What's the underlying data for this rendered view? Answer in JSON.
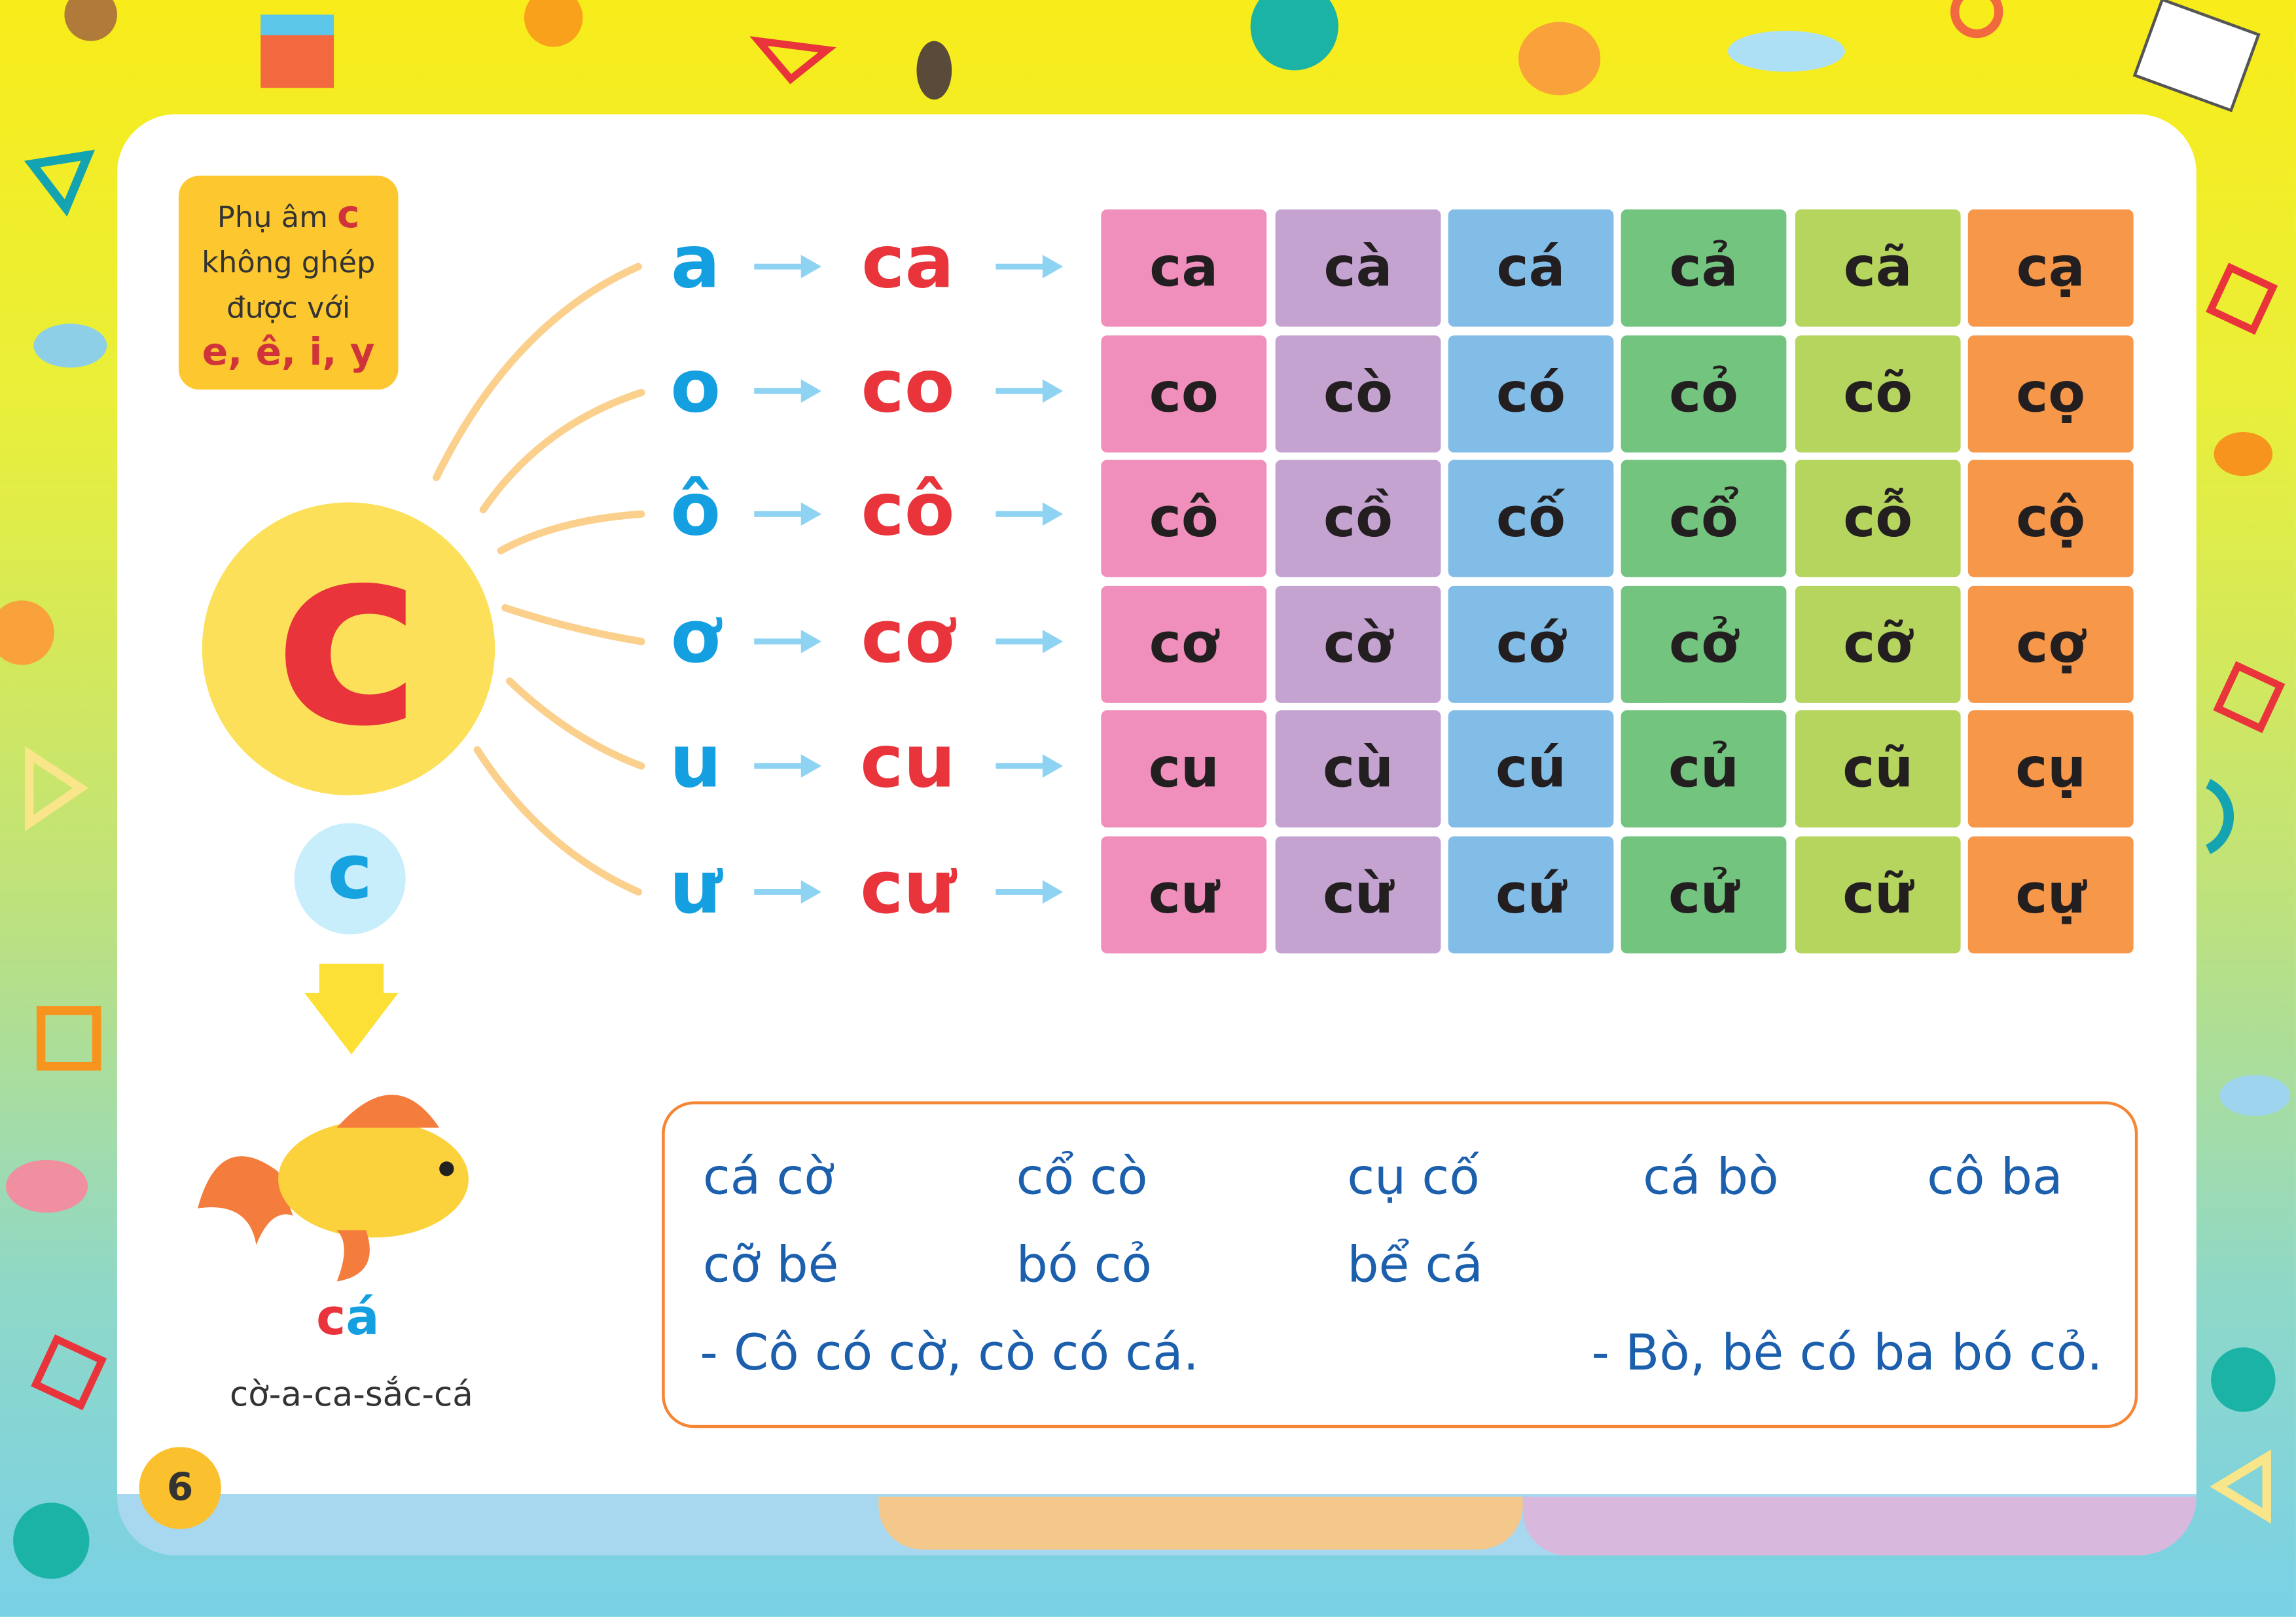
{
  "note": {
    "line1": "Phụ âm ",
    "consonant": "c",
    "line2": "không ghép",
    "line3": "được với",
    "excluded": "e, ê, i, y"
  },
  "big_letter": "c",
  "small_letter": "c",
  "fish_word": {
    "c": "c",
    "rest": "á"
  },
  "spelling": "cờ-a-ca-sắc-cá",
  "rows": [
    {
      "vowel": "a",
      "syllable": "ca",
      "tones": [
        "ca",
        "cà",
        "cá",
        "cả",
        "cã",
        "cạ"
      ]
    },
    {
      "vowel": "o",
      "syllable": "co",
      "tones": [
        "co",
        "cò",
        "có",
        "cỏ",
        "cõ",
        "cọ"
      ]
    },
    {
      "vowel": "ô",
      "syllable": "cô",
      "tones": [
        "cô",
        "cồ",
        "cố",
        "cổ",
        "cỗ",
        "cộ"
      ]
    },
    {
      "vowel": "ơ",
      "syllable": "cơ",
      "tones": [
        "cơ",
        "cờ",
        "cớ",
        "cở",
        "cỡ",
        "cợ"
      ]
    },
    {
      "vowel": "u",
      "syllable": "cu",
      "tones": [
        "cu",
        "cù",
        "cú",
        "củ",
        "cũ",
        "cụ"
      ]
    },
    {
      "vowel": "ư",
      "syllable": "cư",
      "tones": [
        "cư",
        "cừ",
        "cứ",
        "cử",
        "cữ",
        "cự"
      ]
    }
  ],
  "column_colors": [
    "#f08fbb",
    "#c4a3d0",
    "#82bde8",
    "#72c47f",
    "#b5d55e",
    "#f69749"
  ],
  "reading": {
    "words": [
      "cá cờ",
      "cổ cò",
      "cụ cố",
      "cá bò",
      "cô ba",
      "cỡ bé",
      "bó cỏ",
      "bể cá"
    ],
    "sentences": [
      "- Cô có cờ, cò có cá.",
      "- Bò, bê có ba bó cỏ."
    ]
  },
  "page_number": "6"
}
